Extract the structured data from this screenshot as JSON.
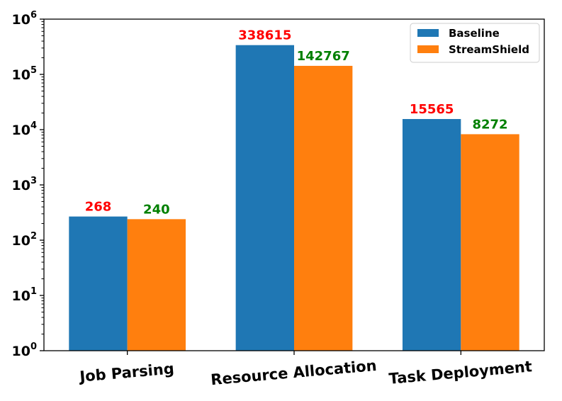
{
  "chart_data": {
    "type": "bar",
    "title": "",
    "xlabel": "",
    "ylabel": "",
    "yscale": "log",
    "ylim": [
      1,
      1000000
    ],
    "yticks": [
      {
        "base": "10",
        "exp": "0",
        "value": 1
      },
      {
        "base": "10",
        "exp": "1",
        "value": 10
      },
      {
        "base": "10",
        "exp": "2",
        "value": 100
      },
      {
        "base": "10",
        "exp": "3",
        "value": 1000
      },
      {
        "base": "10",
        "exp": "4",
        "value": 10000
      },
      {
        "base": "10",
        "exp": "5",
        "value": 100000
      },
      {
        "base": "10",
        "exp": "6",
        "value": 1000000
      }
    ],
    "categories": [
      "Job Parsing",
      "Resource Allocation",
      "Task Deployment"
    ],
    "series": [
      {
        "name": "Baseline",
        "color": "#1f77b4",
        "label_color": "#ff0000",
        "values": [
          268,
          338615,
          15565
        ]
      },
      {
        "name": "StreamShield",
        "color": "#ff7f0e",
        "label_color": "#008000",
        "values": [
          240,
          142767,
          8272
        ]
      }
    ],
    "legend": "top-right",
    "grid": false
  }
}
